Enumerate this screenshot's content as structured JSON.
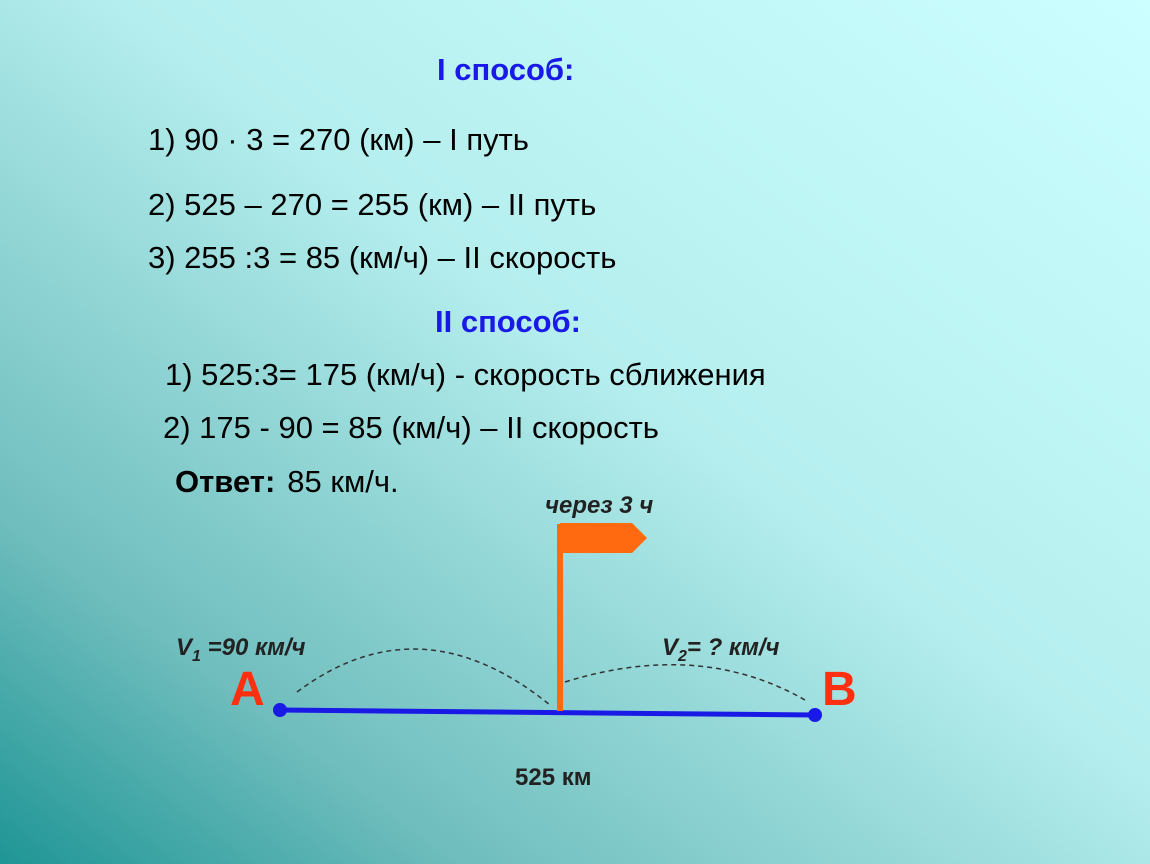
{
  "method1": {
    "title": "I  способ:",
    "steps": [
      "1) 90 · 3 = 270 (км) – I путь",
      "2) 525 – 270 = 255 (км) – II путь",
      "3) 255 :3 = 85 (км/ч) – II скорость"
    ]
  },
  "method2": {
    "title": "II  способ:",
    "steps": [
      "1) 525:3= 175 (км/ч) -  скорость сближения",
      "2) 175 - 90 = 85 (км/ч) – II скорость"
    ]
  },
  "answer": {
    "label": "Ответ:",
    "text": "85 км/ч."
  },
  "diagram": {
    "flag_label": "через 3 ч",
    "v1": {
      "symbol": "V",
      "index": "1",
      "text": " =90 км/ч"
    },
    "v2": {
      "symbol": "V",
      "index": "2",
      "text": "= ? км/ч"
    },
    "point_a": "A",
    "point_b": "B",
    "distance": "525 км"
  }
}
